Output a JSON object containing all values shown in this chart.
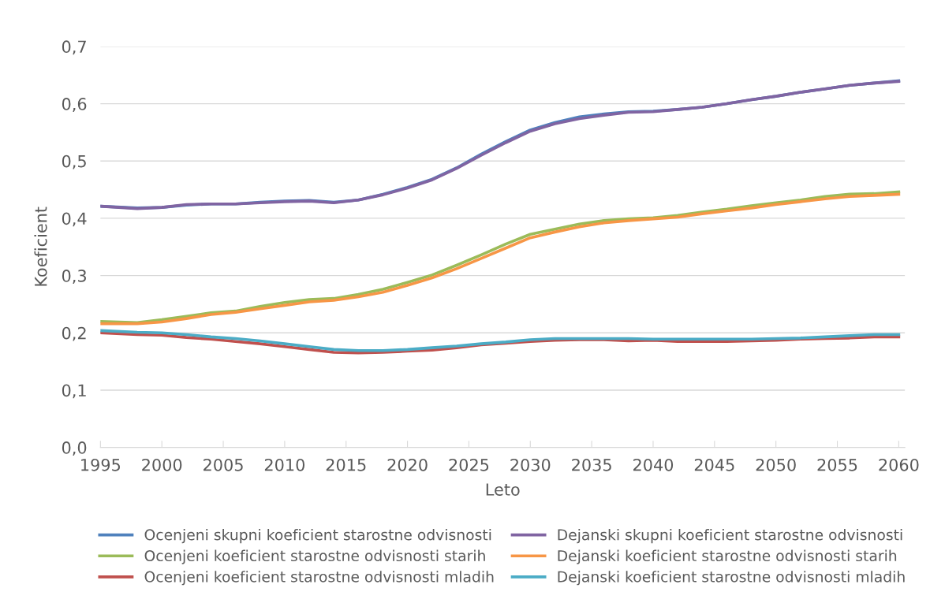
{
  "chart_data": {
    "type": "line",
    "xlabel": "Leto",
    "ylabel": "Koeficient",
    "x": [
      1995,
      1998,
      2000,
      2002,
      2004,
      2006,
      2008,
      2010,
      2012,
      2014,
      2016,
      2018,
      2020,
      2022,
      2024,
      2026,
      2028,
      2030,
      2032,
      2034,
      2036,
      2038,
      2040,
      2042,
      2044,
      2046,
      2048,
      2050,
      2052,
      2054,
      2056,
      2058,
      2060
    ],
    "xlim": [
      1995,
      2060.5
    ],
    "xticks": [
      1995,
      2000,
      2005,
      2010,
      2015,
      2020,
      2025,
      2030,
      2035,
      2040,
      2045,
      2050,
      2055,
      2060
    ],
    "ylim": [
      0,
      0.7
    ],
    "yticks": [
      {
        "value": 0,
        "label": "0,0"
      },
      {
        "value": 0.1,
        "label": "0,1"
      },
      {
        "value": 0.2,
        "label": "0,2"
      },
      {
        "value": 0.3,
        "label": "0,3"
      },
      {
        "value": 0.4,
        "label": "0,4"
      },
      {
        "value": 0.5,
        "label": "0,5"
      },
      {
        "value": 0.6,
        "label": "0,6"
      },
      {
        "value": 0.7,
        "label": "0,7"
      }
    ],
    "grid": "y",
    "legend": "bottom",
    "marker": "none",
    "line_style": "solid",
    "series": [
      {
        "name": "Ocenjeni skupni koeficient starostne odvisnosti",
        "color": "#4f81bd",
        "values": [
          0.421,
          0.418,
          0.419,
          0.423,
          0.425,
          0.425,
          0.428,
          0.43,
          0.431,
          0.428,
          0.432,
          0.442,
          0.454,
          0.468,
          0.488,
          0.512,
          0.534,
          0.554,
          0.567,
          0.577,
          0.582,
          0.586,
          0.587,
          0.59,
          0.594,
          0.6,
          0.607,
          0.613,
          0.62,
          0.626,
          0.632,
          0.636,
          0.64
        ]
      },
      {
        "name": "Dejanski skupni koeficient starostne odvisnosti",
        "color": "#8064a2",
        "values": [
          0.421,
          0.417,
          0.419,
          0.424,
          0.425,
          0.425,
          0.427,
          0.429,
          0.43,
          0.427,
          0.432,
          0.441,
          0.453,
          0.467,
          0.487,
          0.51,
          0.532,
          0.552,
          0.565,
          0.574,
          0.58,
          0.585,
          0.586,
          0.59,
          0.594,
          0.6,
          0.607,
          0.613,
          0.62,
          0.626,
          0.632,
          0.636,
          0.639
        ]
      },
      {
        "name": "Ocenjeni koeficient starostne odvisnosti starih",
        "color": "#9bbb59",
        "values": [
          0.22,
          0.218,
          0.223,
          0.229,
          0.235,
          0.238,
          0.246,
          0.253,
          0.258,
          0.26,
          0.267,
          0.276,
          0.288,
          0.301,
          0.318,
          0.336,
          0.355,
          0.372,
          0.381,
          0.39,
          0.396,
          0.399,
          0.401,
          0.405,
          0.411,
          0.416,
          0.422,
          0.427,
          0.432,
          0.438,
          0.442,
          0.443,
          0.446
        ]
      },
      {
        "name": "Dejanski koeficient starostne odvisnosti starih",
        "color": "#f79646",
        "values": [
          0.216,
          0.216,
          0.219,
          0.225,
          0.232,
          0.236,
          0.242,
          0.248,
          0.254,
          0.257,
          0.263,
          0.271,
          0.283,
          0.296,
          0.312,
          0.33,
          0.348,
          0.366,
          0.376,
          0.385,
          0.392,
          0.396,
          0.399,
          0.402,
          0.408,
          0.413,
          0.418,
          0.424,
          0.429,
          0.434,
          0.438,
          0.44,
          0.442
        ]
      },
      {
        "name": "Ocenjeni koeficient starostne odvisnosti mladih",
        "color": "#c0504d",
        "values": [
          0.2,
          0.197,
          0.196,
          0.192,
          0.189,
          0.185,
          0.181,
          0.176,
          0.171,
          0.166,
          0.165,
          0.166,
          0.168,
          0.17,
          0.174,
          0.179,
          0.182,
          0.185,
          0.187,
          0.188,
          0.188,
          0.186,
          0.187,
          0.185,
          0.185,
          0.185,
          0.186,
          0.187,
          0.189,
          0.19,
          0.191,
          0.193,
          0.193
        ]
      },
      {
        "name": "Dejanski koeficient starostne odvisnosti mladih",
        "color": "#4bacc6",
        "values": [
          0.204,
          0.201,
          0.2,
          0.197,
          0.193,
          0.19,
          0.186,
          0.181,
          0.176,
          0.171,
          0.169,
          0.169,
          0.171,
          0.174,
          0.177,
          0.181,
          0.184,
          0.188,
          0.19,
          0.19,
          0.19,
          0.19,
          0.189,
          0.189,
          0.189,
          0.189,
          0.189,
          0.19,
          0.191,
          0.193,
          0.195,
          0.197,
          0.197
        ]
      }
    ]
  }
}
